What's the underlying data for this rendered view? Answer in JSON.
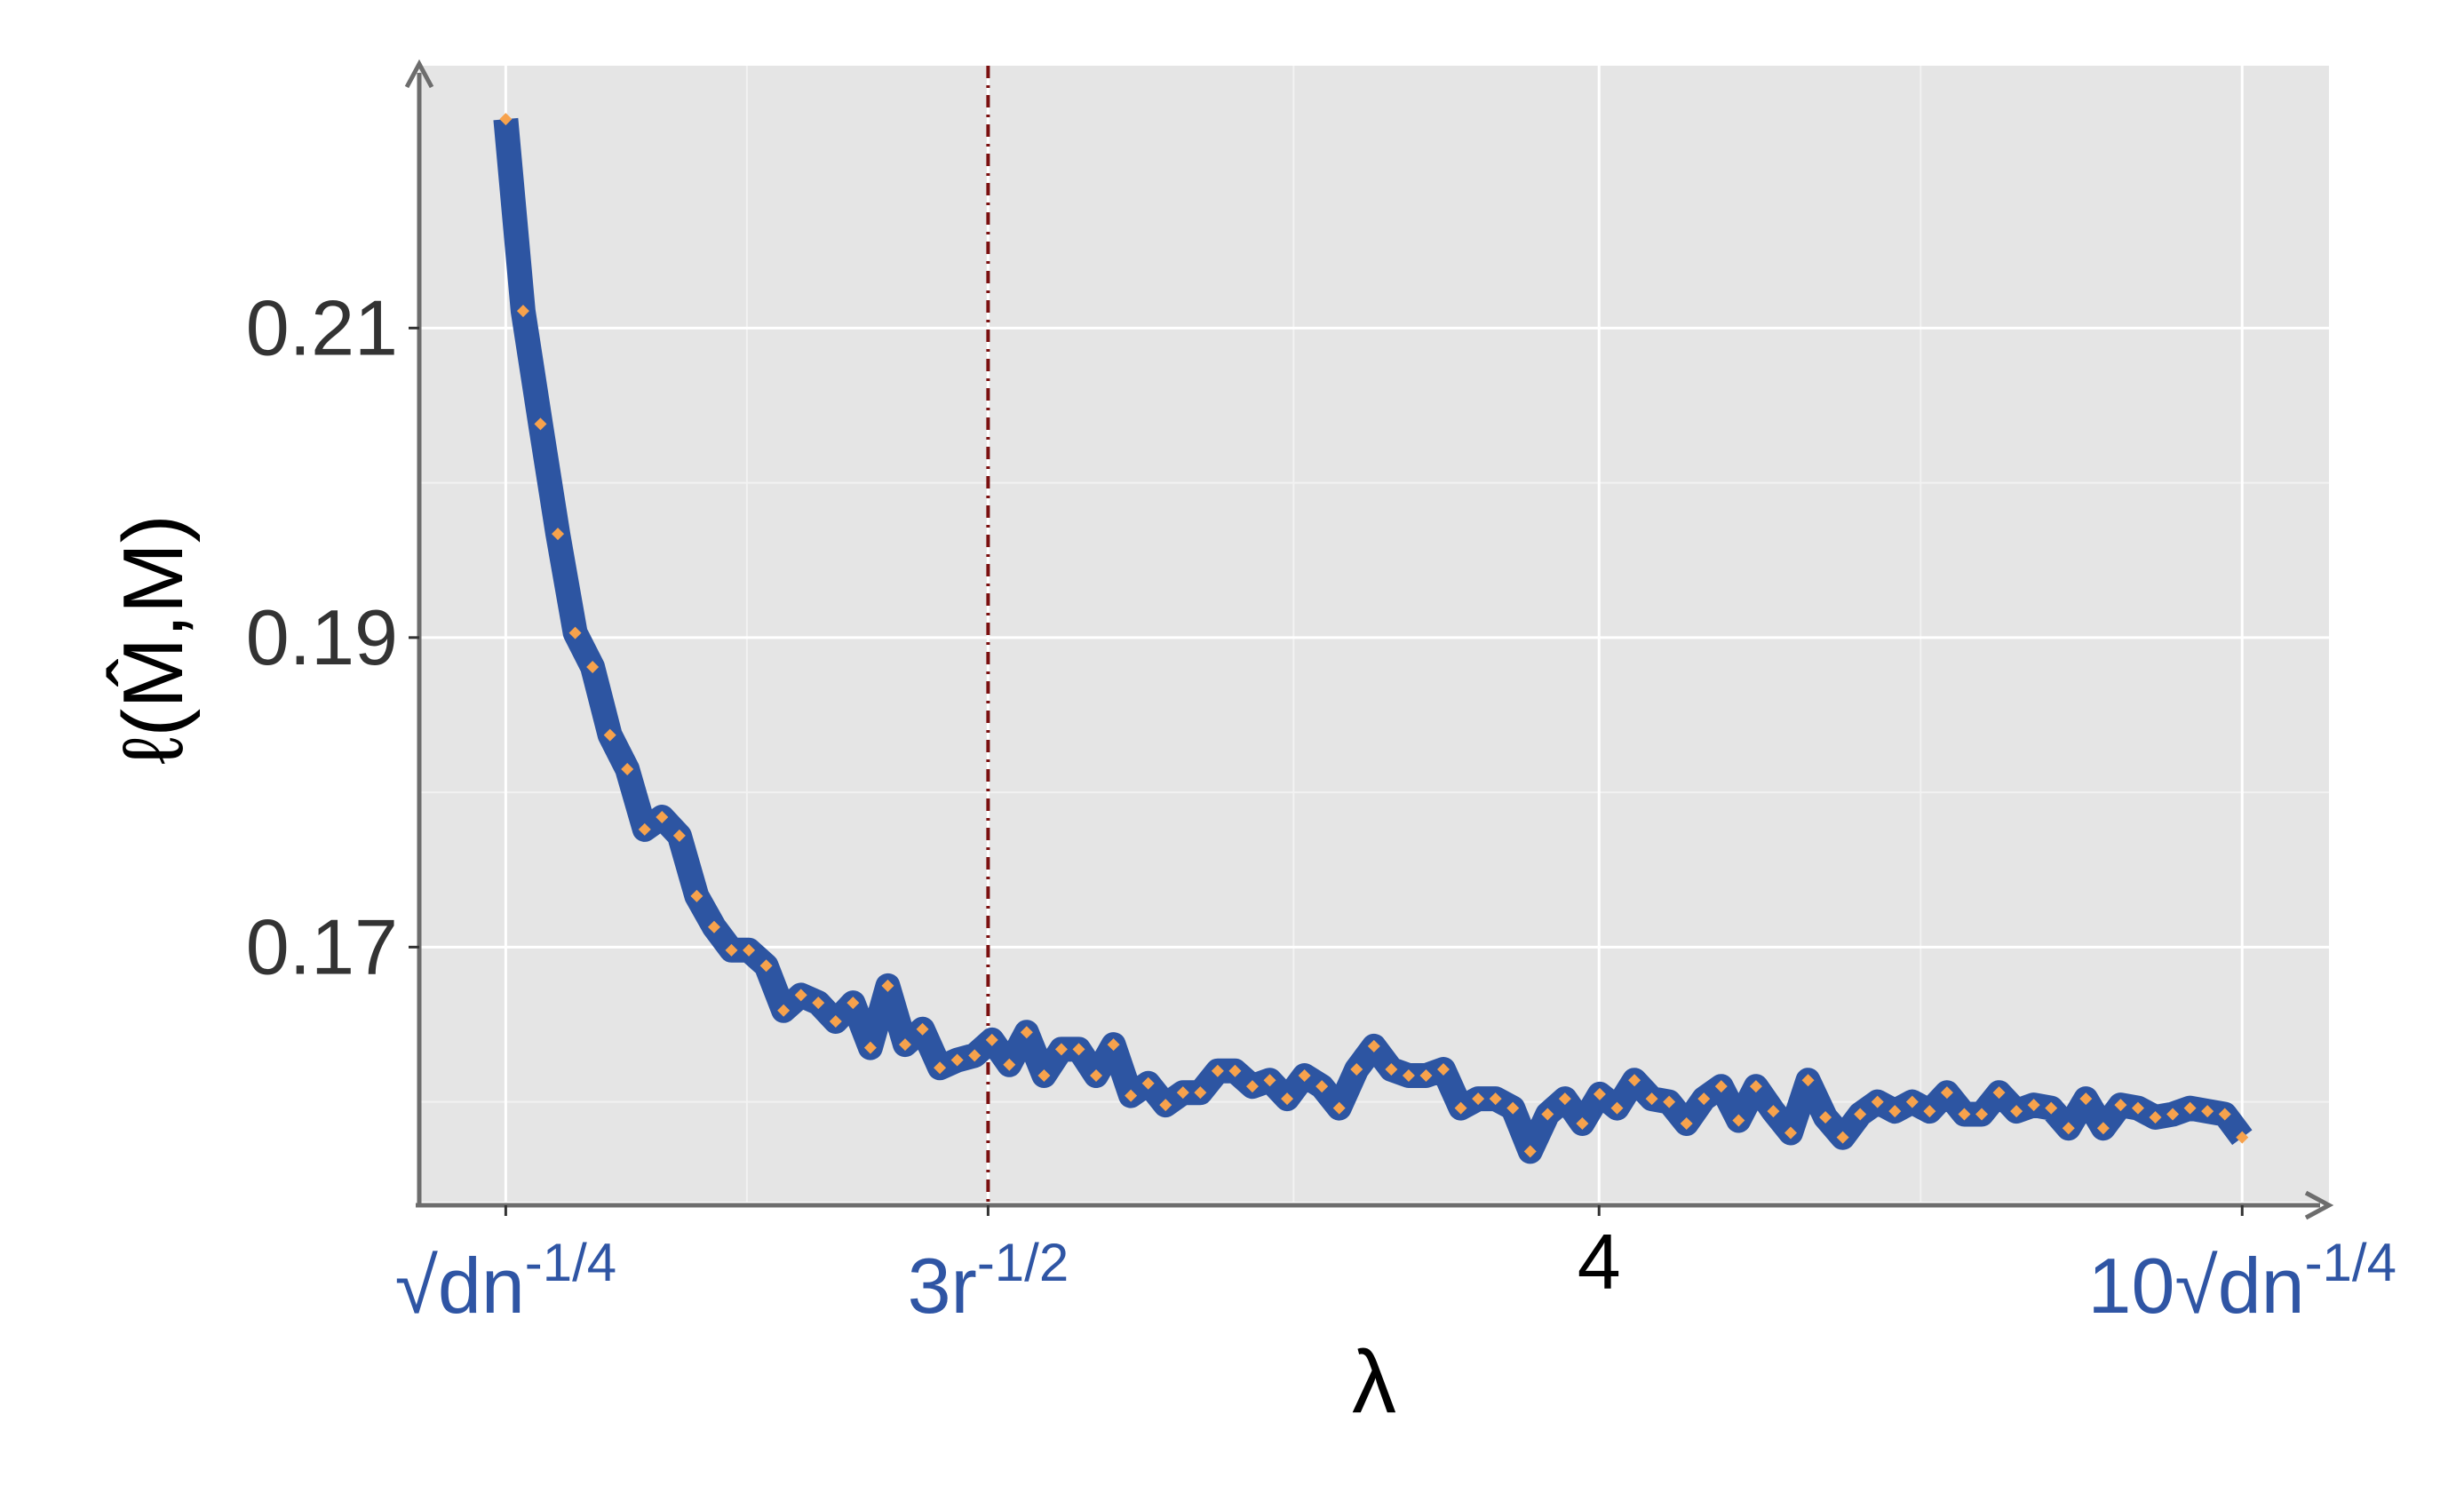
{
  "chart_data": {
    "type": "line",
    "x_label": "λ",
    "y_label": "ℓ(M̂,M)",
    "x": [
      0.6,
      0.654,
      0.708,
      0.762,
      0.816,
      0.87,
      0.924,
      0.978,
      1.032,
      1.086,
      1.14,
      1.194,
      1.248,
      1.302,
      1.356,
      1.41,
      1.464,
      1.518,
      1.572,
      1.626,
      1.68,
      1.734,
      1.788,
      1.842,
      1.896,
      1.95,
      2.004,
      2.058,
      2.112,
      2.166,
      2.22,
      2.274,
      2.328,
      2.382,
      2.436,
      2.49,
      2.544,
      2.598,
      2.652,
      2.706,
      2.76,
      2.814,
      2.868,
      2.922,
      2.976,
      3.03,
      3.084,
      3.138,
      3.192,
      3.246,
      3.3,
      3.354,
      3.408,
      3.462,
      3.516,
      3.57,
      3.624,
      3.678,
      3.732,
      3.786,
      3.84,
      3.894,
      3.948,
      4.002,
      4.056,
      4.11,
      4.164,
      4.218,
      4.272,
      4.326,
      4.38,
      4.434,
      4.488,
      4.542,
      4.596,
      4.65,
      4.704,
      4.758,
      4.812,
      4.866,
      4.92,
      4.974,
      5.028,
      5.082,
      5.136,
      5.19,
      5.244,
      5.298,
      5.352,
      5.406,
      5.46,
      5.514,
      5.568,
      5.622,
      5.676,
      5.73,
      5.784,
      5.838,
      5.892,
      5.946,
      6.0
    ],
    "series": [
      {
        "color": "#2d55a2",
        "marker_color": "#f7a24c",
        "values": [
          0.2235,
          0.2111,
          0.2038,
          0.1967,
          0.1903,
          0.1881,
          0.1837,
          0.1815,
          0.1776,
          0.1784,
          0.1772,
          0.1733,
          0.1713,
          0.1698,
          0.1698,
          0.1688,
          0.1659,
          0.1669,
          0.1664,
          0.1652,
          0.1664,
          0.1635,
          0.1675,
          0.1637,
          0.1647,
          0.1622,
          0.1627,
          0.163,
          0.164,
          0.1624,
          0.1645,
          0.1617,
          0.1634,
          0.1634,
          0.1617,
          0.1637,
          0.1604,
          0.1612,
          0.1598,
          0.1606,
          0.1606,
          0.162,
          0.162,
          0.161,
          0.1614,
          0.1602,
          0.1617,
          0.161,
          0.1596,
          0.1621,
          0.1636,
          0.1621,
          0.1617,
          0.1617,
          0.1621,
          0.1596,
          0.1602,
          0.1602,
          0.1596,
          0.1568,
          0.1592,
          0.1602,
          0.1586,
          0.1605,
          0.1596,
          0.1614,
          0.1602,
          0.16,
          0.1586,
          0.1602,
          0.161,
          0.1588,
          0.161,
          0.1594,
          0.158,
          0.1614,
          0.159,
          0.1577,
          0.1592,
          0.16,
          0.1594,
          0.16,
          0.1594,
          0.1606,
          0.1592,
          0.1592,
          0.1606,
          0.1594,
          0.1598,
          0.1596,
          0.1583,
          0.1602,
          0.1583,
          0.1598,
          0.1596,
          0.159,
          0.1592,
          0.1596,
          0.1594,
          0.1592,
          0.1577
        ]
      }
    ],
    "xlim": [
      0.331,
      6.27
    ],
    "ylim": [
      0.15355,
      0.22695
    ],
    "xticks": [
      {
        "value": 0.6,
        "label": "√dn",
        "superscript": "-1/4"
      },
      {
        "value": 2.1,
        "label": "3r",
        "superscript": "-1/2"
      },
      4,
      {
        "value": 6.0,
        "label": "10√dn",
        "superscript": "-1/4"
      }
    ],
    "xtick_label_color": "#2f55a4",
    "yticks": [
      0.17,
      0.19,
      0.21
    ],
    "minor_xgrid": [
      1.35,
      3.05,
      5.0
    ],
    "minor_ygrid": [
      0.16,
      0.18,
      0.2
    ],
    "vline": {
      "x": 2.1,
      "color": "#7b1010"
    },
    "grid": true
  }
}
